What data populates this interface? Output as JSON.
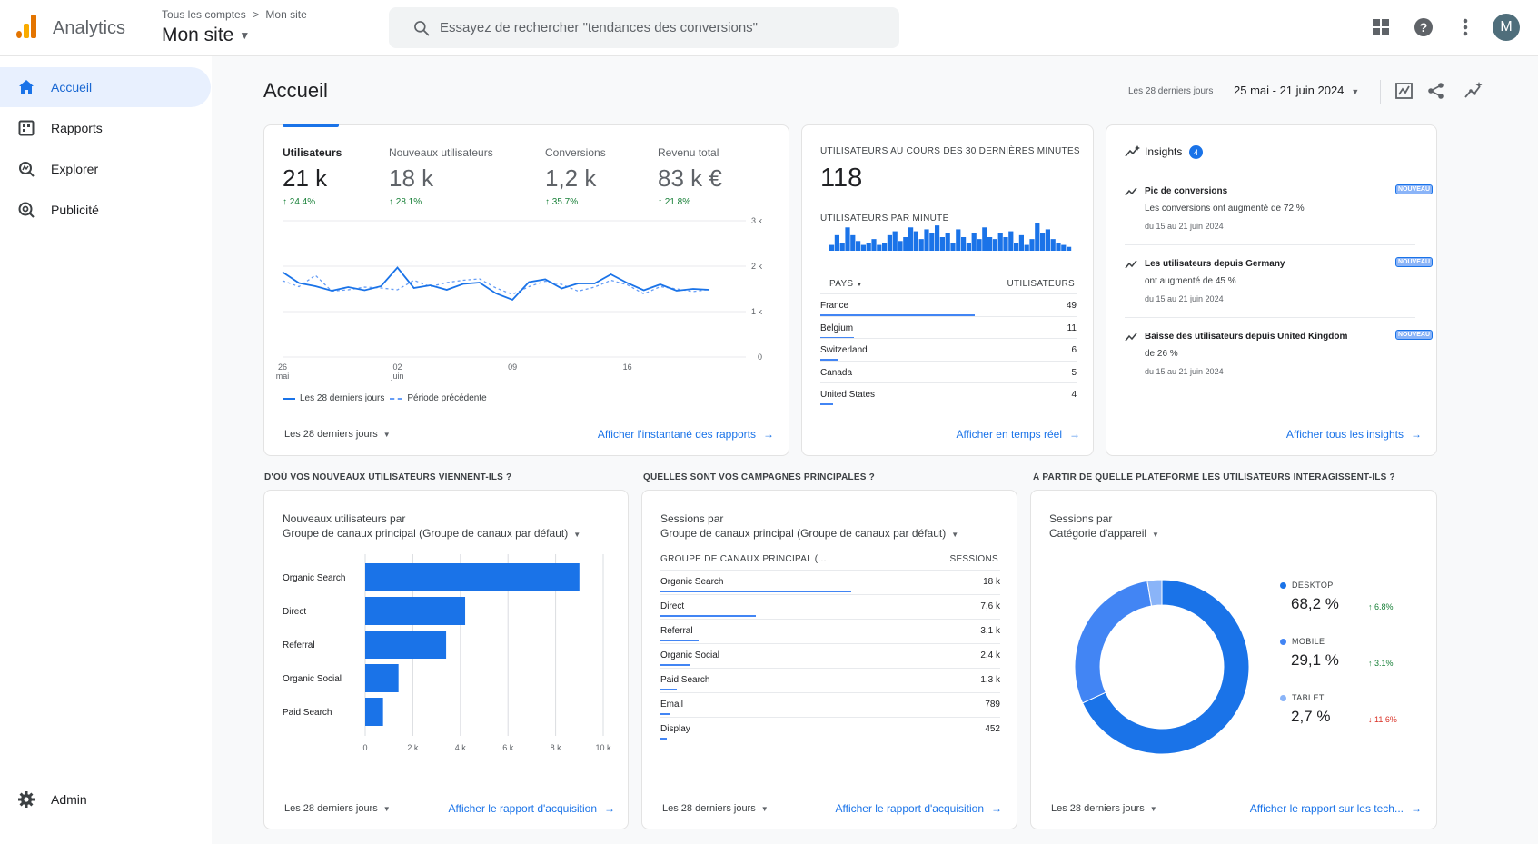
{
  "app": {
    "name": "Analytics",
    "breadcrumb_root": "Tous les comptes",
    "breadcrumb_sep": ">",
    "breadcrumb_leaf": "Mon site",
    "property": "Mon site"
  },
  "search": {
    "placeholder": "Essayez de rechercher \"tendances des conversions\""
  },
  "header_icons": [
    "apps-icon",
    "help-icon",
    "more-vert-icon"
  ],
  "user": {
    "initial": "M"
  },
  "sidebar": {
    "items": [
      {
        "label": "Accueil",
        "icon": "home-icon",
        "active": true
      },
      {
        "label": "Rapports",
        "icon": "reports-icon",
        "active": false
      },
      {
        "label": "Explorer",
        "icon": "explore-icon",
        "active": false
      },
      {
        "label": "Publicité",
        "icon": "advertising-icon",
        "active": false
      }
    ],
    "admin": {
      "label": "Admin",
      "icon": "gear-icon"
    }
  },
  "page": {
    "title": "Accueil",
    "date_label": "Les 28 derniers jours",
    "date_range": "25 mai - 21 juin 2024"
  },
  "overview": {
    "metrics": [
      {
        "label": "Utilisateurs",
        "value": "21 k",
        "delta": "24.4%",
        "selected": true
      },
      {
        "label": "Nouveaux utilisateurs",
        "value": "18 k",
        "delta": "28.1%",
        "selected": false
      },
      {
        "label": "Conversions",
        "value": "1,2 k",
        "delta": "35.7%",
        "selected": false
      },
      {
        "label": "Revenu total",
        "value": "83 k €",
        "delta": "21.8%",
        "selected": false
      }
    ],
    "legend_current": "Les 28 derniers jours",
    "legend_previous": "Période précédente",
    "footer_period": "Les 28 derniers jours",
    "footer_link": "Afficher l'instantané des rapports"
  },
  "realtime": {
    "title": "UTILISATEURS AU COURS DES 30 DERNIÈRES MINUTES",
    "value": "118",
    "per_minute_label": "UTILISATEURS PAR MINUTE",
    "per_minute": [
      3,
      8,
      4,
      12,
      8,
      5,
      3,
      4,
      6,
      3,
      4,
      8,
      10,
      5,
      7,
      12,
      10,
      6,
      11,
      9,
      13,
      7,
      9,
      4,
      11,
      7,
      4,
      9,
      6,
      12,
      7,
      6,
      9,
      7,
      10,
      4,
      8,
      3,
      6,
      14,
      9,
      11,
      6,
      4,
      3,
      2
    ],
    "col_country": "PAYS",
    "col_users": "UTILISATEURS",
    "rows": [
      {
        "name": "France",
        "value": "49",
        "frac": 1.0
      },
      {
        "name": "Belgium",
        "value": "11",
        "frac": 0.22
      },
      {
        "name": "Switzerland",
        "value": "6",
        "frac": 0.12
      },
      {
        "name": "Canada",
        "value": "5",
        "frac": 0.1
      },
      {
        "name": "United States",
        "value": "4",
        "frac": 0.08
      }
    ],
    "footer_link": "Afficher en temps réel"
  },
  "insights": {
    "title": "Insights",
    "count": "4",
    "badge": "NOUVEAU",
    "items": [
      {
        "title": "Pic de conversions",
        "desc": "Les conversions ont augmenté de 72 %",
        "date": "du 15 au 21 juin 2024"
      },
      {
        "title": "Les utilisateurs depuis Germany",
        "desc": "ont augmenté de 45 %",
        "date": "du 15 au 21 juin 2024"
      },
      {
        "title": "Baisse des utilisateurs depuis United Kingdom",
        "desc": "de 26 %",
        "date": "du 15 au 21 juin 2024"
      }
    ],
    "footer_link": "Afficher tous les insights"
  },
  "acquisition": {
    "question": "D'OÙ VOS NOUVEAUX UTILISATEURS VIENNENT-ILS ?",
    "title1": "Nouveaux utilisateurs par",
    "title2": "Groupe de canaux principal (Groupe de canaux par défaut)",
    "footer_period": "Les 28 derniers jours",
    "footer_link": "Afficher le rapport d'acquisition"
  },
  "campaigns": {
    "question": "QUELLES SONT VOS CAMPAGNES PRINCIPALES ?",
    "title1": "Sessions par",
    "title2": "Groupe de canaux principal (Groupe de canaux par défaut)",
    "col_group": "GROUPE DE CANAUX PRINCIPAL (...",
    "col_sessions": "SESSIONS",
    "rows": [
      {
        "name": "Organic Search",
        "value": "18 k",
        "frac": 0.6
      },
      {
        "name": "Direct",
        "value": "7,6 k",
        "frac": 0.3
      },
      {
        "name": "Referral",
        "value": "3,1 k",
        "frac": 0.12
      },
      {
        "name": "Organic Social",
        "value": "2,4 k",
        "frac": 0.09
      },
      {
        "name": "Paid Search",
        "value": "1,3 k",
        "frac": 0.05
      },
      {
        "name": "Email",
        "value": "789",
        "frac": 0.03
      },
      {
        "name": "Display",
        "value": "452",
        "frac": 0.02
      }
    ],
    "footer_period": "Les 28 derniers jours",
    "footer_link": "Afficher le rapport d'acquisition"
  },
  "devices": {
    "question": "À PARTIR DE QUELLE PLATEFORME LES UTILISATEURS INTERAGISSENT-ILS ?",
    "title1": "Sessions par",
    "title2": "Catégorie d'appareil",
    "items": [
      {
        "name": "DESKTOP",
        "pct": "68,2 %",
        "delta": "6.8%",
        "dir": "up",
        "color": "#1a73e8"
      },
      {
        "name": "MOBILE",
        "pct": "29,1 %",
        "delta": "3.1%",
        "dir": "up",
        "color": "#4285f4"
      },
      {
        "name": "TABLET",
        "pct": "2,7 %",
        "delta": "11.6%",
        "dir": "down",
        "color": "#8ab4f8"
      }
    ],
    "footer_period": "Les 28 derniers jours",
    "footer_link": "Afficher le rapport sur les tech..."
  },
  "chart_data": [
    {
      "type": "line",
      "x": [
        "26 mai",
        "27",
        "28",
        "29",
        "30",
        "31",
        "01",
        "02 juin",
        "03",
        "04",
        "05",
        "06",
        "07",
        "08",
        "09",
        "10",
        "11",
        "12",
        "13",
        "14",
        "15",
        "16",
        "17",
        "18",
        "19",
        "20",
        "21"
      ],
      "xticks": [
        {
          "label": "26",
          "sub": "mai",
          "i": 0
        },
        {
          "label": "02",
          "sub": "juin",
          "i": 7
        },
        {
          "label": "09",
          "sub": "",
          "i": 14
        },
        {
          "label": "16",
          "sub": "",
          "i": 21
        }
      ],
      "yticks": [
        "0",
        "1 k",
        "2 k",
        "3 k"
      ],
      "ylim": [
        0,
        3000
      ],
      "series": [
        {
          "name": "Les 28 derniers jours",
          "values": [
            1870,
            1630,
            1560,
            1460,
            1540,
            1470,
            1560,
            1970,
            1520,
            1580,
            1480,
            1610,
            1640,
            1400,
            1260,
            1650,
            1710,
            1510,
            1620,
            1620,
            1820,
            1630,
            1470,
            1600,
            1460,
            1500,
            1480
          ]
        },
        {
          "name": "Période précédente",
          "values": [
            1680,
            1550,
            1800,
            1450,
            1480,
            1540,
            1520,
            1480,
            1690,
            1550,
            1640,
            1690,
            1720,
            1520,
            1380,
            1550,
            1670,
            1600,
            1450,
            1540,
            1690,
            1590,
            1390,
            1550,
            1500,
            1440,
            1490
          ]
        }
      ]
    },
    {
      "type": "bar",
      "orientation": "horizontal",
      "categories": [
        "Organic Search",
        "Direct",
        "Referral",
        "Organic Social",
        "Paid Search"
      ],
      "values": [
        9000,
        4200,
        3400,
        1400,
        750
      ],
      "xticks": [
        "0",
        "2 k",
        "4 k",
        "6 k",
        "8 k",
        "10 k"
      ],
      "xlim": [
        0,
        10000
      ]
    },
    {
      "type": "pie",
      "donut": true,
      "categories": [
        "DESKTOP",
        "MOBILE",
        "TABLET"
      ],
      "values": [
        68.2,
        29.1,
        2.7
      ]
    }
  ]
}
